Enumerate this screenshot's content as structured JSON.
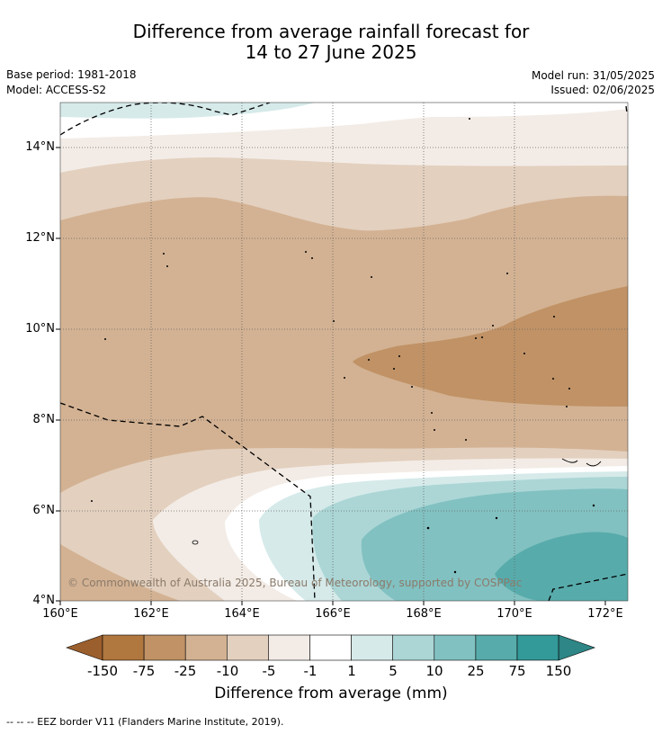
{
  "title_line1": "Difference from average rainfall forecast for",
  "title_line2": "14 to 27 June 2025",
  "base_period": "Base period: 1981-2018",
  "model": "Model: ACCESS-S2",
  "model_run": "Model run: 31/05/2025",
  "issued": "Issued: 02/06/2025",
  "lat_labels": [
    "14°N",
    "12°N",
    "10°N",
    "8°N",
    "6°N",
    "4°N"
  ],
  "lon_labels": [
    "160°E",
    "162°E",
    "164°E",
    "166°E",
    "168°E",
    "170°E",
    "172°E"
  ],
  "credit": "© Commonwealth of Australia 2025, Bureau of Meteorology, supported by COSPPac",
  "colorbar": {
    "labels": [
      "-150",
      "-75",
      "-25",
      "-10",
      "-5",
      "-1",
      "1",
      "5",
      "10",
      "25",
      "75",
      "150"
    ],
    "colors": [
      "#9b5f2d",
      "#b0773f",
      "#c09265",
      "#d3b293",
      "#e3d0bf",
      "#f3ece6",
      "#ffffff",
      "#d6eaea",
      "#acd6d6",
      "#82c1c1",
      "#58abab",
      "#339999",
      "#2e8686"
    ],
    "title": "Difference from average (mm)"
  },
  "legend_text": "--  --  -- EEZ border V11 (Flanders Marine Institute, 2019)."
}
